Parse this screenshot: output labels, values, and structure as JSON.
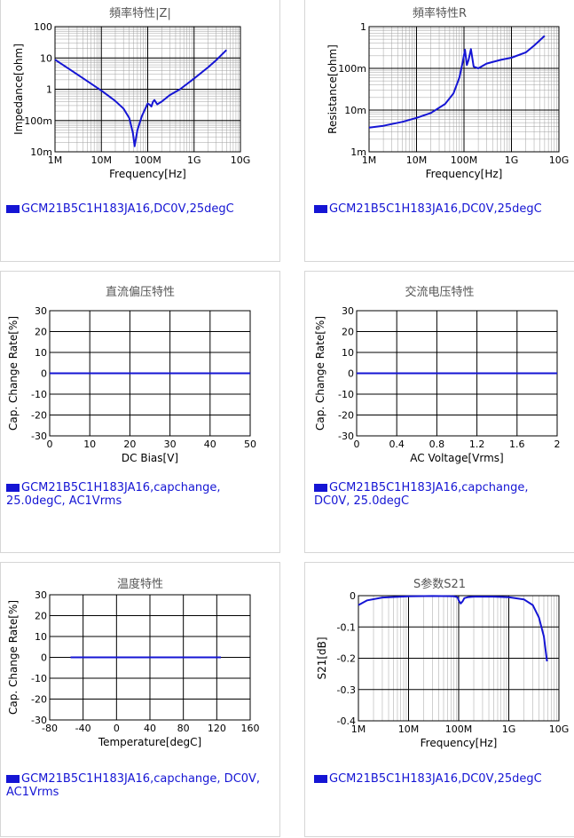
{
  "colors": {
    "series": "#1515d4",
    "grid": "#000000",
    "minor_grid": "#a0a0a0",
    "text": "#000000",
    "title": "#555555"
  },
  "chart_data": [
    {
      "type": "line",
      "title": "頻率特性|Z|",
      "xlabel": "Frequency[Hz]",
      "ylabel": "Impedance[ohm]",
      "xscale": "log",
      "yscale": "log",
      "xlim": [
        1000000,
        10000000000
      ],
      "ylim": [
        0.01,
        100
      ],
      "xticks": [
        "1M",
        "10M",
        "100M",
        "1G",
        "10G"
      ],
      "yticks": [
        "10m",
        "100m",
        "1",
        "10",
        "100"
      ],
      "legend": "GCM21B5C1H183JA16,DC0V,25degC",
      "series": [
        {
          "name": "GCM21B5C1H183JA16,DC0V,25degC",
          "x": [
            1000000,
            3000000,
            10000000,
            20000000,
            30000000,
            40000000,
            48000000,
            52000000,
            60000000,
            75000000,
            90000000,
            100000000,
            110000000,
            120000000,
            130000000,
            140000000,
            160000000,
            200000000,
            300000000,
            500000000,
            1000000000,
            2000000000,
            3000000000,
            5000000000
          ],
          "y": [
            8.8,
            3.0,
            0.9,
            0.42,
            0.24,
            0.12,
            0.04,
            0.015,
            0.05,
            0.14,
            0.25,
            0.35,
            0.32,
            0.28,
            0.4,
            0.45,
            0.33,
            0.4,
            0.65,
            1.0,
            2.2,
            5.0,
            8.5,
            18
          ]
        }
      ]
    },
    {
      "type": "line",
      "title": "頻率特性R",
      "xlabel": "Frequency[Hz]",
      "ylabel": "Resistance[ohm]",
      "xscale": "log",
      "yscale": "log",
      "xlim": [
        1000000,
        10000000000
      ],
      "ylim": [
        0.001,
        1
      ],
      "xticks": [
        "1M",
        "10M",
        "100M",
        "1G",
        "10G"
      ],
      "yticks": [
        "1m",
        "10m",
        "100m",
        "1"
      ],
      "legend": "GCM21B5C1H183JA16,DC0V,25degC",
      "series": [
        {
          "name": "GCM21B5C1H183JA16,DC0V,25degC",
          "x": [
            1000000,
            2000000,
            5000000,
            10000000,
            20000000,
            40000000,
            60000000,
            80000000,
            95000000,
            105000000,
            115000000,
            125000000,
            140000000,
            160000000,
            200000000,
            300000000,
            600000000,
            1000000000,
            2000000000,
            3000000000,
            5000000000
          ],
          "y": [
            0.0038,
            0.0042,
            0.0052,
            0.0065,
            0.0085,
            0.014,
            0.025,
            0.06,
            0.15,
            0.28,
            0.12,
            0.16,
            0.29,
            0.11,
            0.1,
            0.13,
            0.16,
            0.18,
            0.24,
            0.35,
            0.6
          ]
        }
      ]
    },
    {
      "type": "line",
      "title": "直流偏压特性",
      "xlabel": "DC Bias[V]",
      "ylabel": "Cap. Change Rate[%]",
      "xlim": [
        0,
        50
      ],
      "ylim": [
        -30,
        30
      ],
      "xticks": [
        "0",
        "10",
        "20",
        "30",
        "40",
        "50"
      ],
      "yticks": [
        "-30",
        "-20",
        "-10",
        "0",
        "10",
        "20",
        "30"
      ],
      "legend": "GCM21B5C1H183JA16,capchange, 25.0degC, AC1Vrms",
      "series": [
        {
          "name": "GCM21B5C1H183JA16,capchange, 25.0degC, AC1Vrms",
          "x": [
            0,
            50
          ],
          "y": [
            0,
            0
          ]
        }
      ]
    },
    {
      "type": "line",
      "title": "交流电压特性",
      "xlabel": "AC Voltage[Vrms]",
      "ylabel": "Cap. Change Rate[%]",
      "xlim": [
        0,
        2
      ],
      "ylim": [
        -30,
        30
      ],
      "xticks": [
        "0",
        "0.4",
        "0.8",
        "1.2",
        "1.6",
        "2"
      ],
      "yticks": [
        "-30",
        "-20",
        "-10",
        "0",
        "10",
        "20",
        "30"
      ],
      "legend": "GCM21B5C1H183JA16,capchange, DC0V, 25.0degC",
      "series": [
        {
          "name": "GCM21B5C1H183JA16,capchange, DC0V, 25.0degC",
          "x": [
            0,
            2
          ],
          "y": [
            0,
            0
          ]
        }
      ]
    },
    {
      "type": "line",
      "title": "温度特性",
      "xlabel": "Temperature[degC]",
      "ylabel": "Cap. Change Rate[%]",
      "xlim": [
        -80,
        160
      ],
      "ylim": [
        -30,
        30
      ],
      "xticks": [
        "-80",
        "-40",
        "0",
        "40",
        "80",
        "120",
        "160"
      ],
      "yticks": [
        "-30",
        "-20",
        "-10",
        "0",
        "10",
        "20",
        "30"
      ],
      "legend": "GCM21B5C1H183JA16,capchange, DC0V, AC1Vrms",
      "series": [
        {
          "name": "GCM21B5C1H183JA16,capchange, DC0V, AC1Vrms",
          "x": [
            -55,
            125
          ],
          "y": [
            0,
            0
          ]
        }
      ]
    },
    {
      "type": "line",
      "title": "S参数S21",
      "xlabel": "Frequency[Hz]",
      "ylabel": "S21[dB]",
      "xscale": "log",
      "xlim": [
        1000000,
        10000000000
      ],
      "ylim": [
        -0.4,
        0
      ],
      "xticks": [
        "1M",
        "10M",
        "100M",
        "1G",
        "10G"
      ],
      "yticks": [
        "-0.4",
        "-0.3",
        "-0.2",
        "-0.1",
        "0"
      ],
      "legend": "GCM21B5C1H183JA16,DC0V,25degC",
      "series": [
        {
          "name": "GCM21B5C1H183JA16,DC0V,25degC",
          "x": [
            1000000,
            1500000,
            3000000,
            10000000,
            30000000,
            80000000,
            95000000,
            100000000,
            110000000,
            120000000,
            130000000,
            150000000,
            200000000,
            500000000,
            1000000000,
            2000000000,
            3000000000,
            4000000000,
            5000000000,
            5800000000
          ],
          "y": [
            -0.03,
            -0.015,
            -0.006,
            -0.002,
            -0.001,
            -0.002,
            -0.005,
            -0.015,
            -0.025,
            -0.018,
            -0.008,
            -0.005,
            -0.003,
            -0.003,
            -0.005,
            -0.012,
            -0.03,
            -0.07,
            -0.13,
            -0.21
          ]
        }
      ]
    }
  ]
}
